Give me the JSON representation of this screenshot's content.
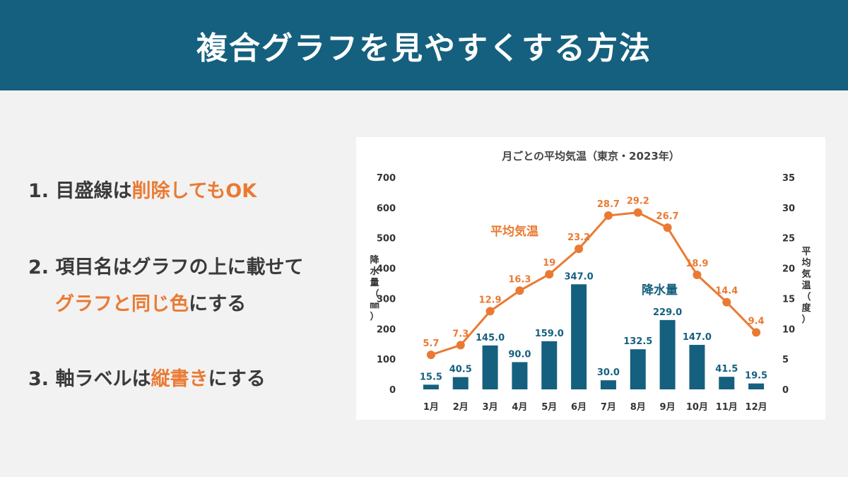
{
  "header": {
    "title": "複合グラフを見やすくする方法"
  },
  "tips": [
    {
      "prefix": "1. 目盛線は",
      "highlight": "削除してもOK",
      "suffix": ""
    },
    {
      "prefix": "2. 項目名はグラフの上に載せて",
      "highlight": "",
      "suffix": ""
    },
    {
      "prefix": "",
      "highlight": "グラフと同じ色",
      "suffix": "にする"
    },
    {
      "prefix": "3. 軸ラベルは",
      "highlight": "縦書き",
      "suffix": "にする"
    }
  ],
  "colors": {
    "bar": "#15607f",
    "line": "#ea7a33",
    "header": "#15607f",
    "text": "#3a3a3a"
  },
  "chart_data": {
    "type": "bar+line",
    "title": "月ごとの平均気温（東京・2023年）",
    "categories": [
      "1月",
      "2月",
      "3月",
      "4月",
      "5月",
      "6月",
      "7月",
      "8月",
      "9月",
      "10月",
      "11月",
      "12月"
    ],
    "series": [
      {
        "name": "降水量",
        "type": "bar",
        "axis": "left",
        "values": [
          15.5,
          40.5,
          145.0,
          90.0,
          159.0,
          347.0,
          30.0,
          132.5,
          229.0,
          147.0,
          41.5,
          19.5
        ],
        "labels": [
          "15.5",
          "40.5",
          "145.0",
          "90.0",
          "159.0",
          "347.0",
          "30.0",
          "132.5",
          "229.0",
          "147.0",
          "41.5",
          "19.5"
        ]
      },
      {
        "name": "平均気温",
        "type": "line",
        "axis": "right",
        "values": [
          5.7,
          7.3,
          12.9,
          16.3,
          19,
          23.2,
          28.7,
          29.2,
          26.7,
          18.9,
          14.4,
          9.4
        ],
        "labels": [
          "5.7",
          "7.3",
          "12.9",
          "16.3",
          "19",
          "23.2",
          "28.7",
          "29.2",
          "26.7",
          "18.9",
          "14.4",
          "9.4"
        ]
      }
    ],
    "y_left": {
      "label": "降水量（㎜）",
      "min": 0,
      "max": 700,
      "ticks": [
        "0",
        "100",
        "200",
        "300",
        "400",
        "500",
        "600",
        "700"
      ]
    },
    "y_right": {
      "label": "平均気温（度）",
      "min": 0,
      "max": 35,
      "ticks": [
        "0",
        "5",
        "10",
        "15",
        "20",
        "25",
        "30",
        "35"
      ]
    },
    "grid": false,
    "legend": "inline labels"
  }
}
